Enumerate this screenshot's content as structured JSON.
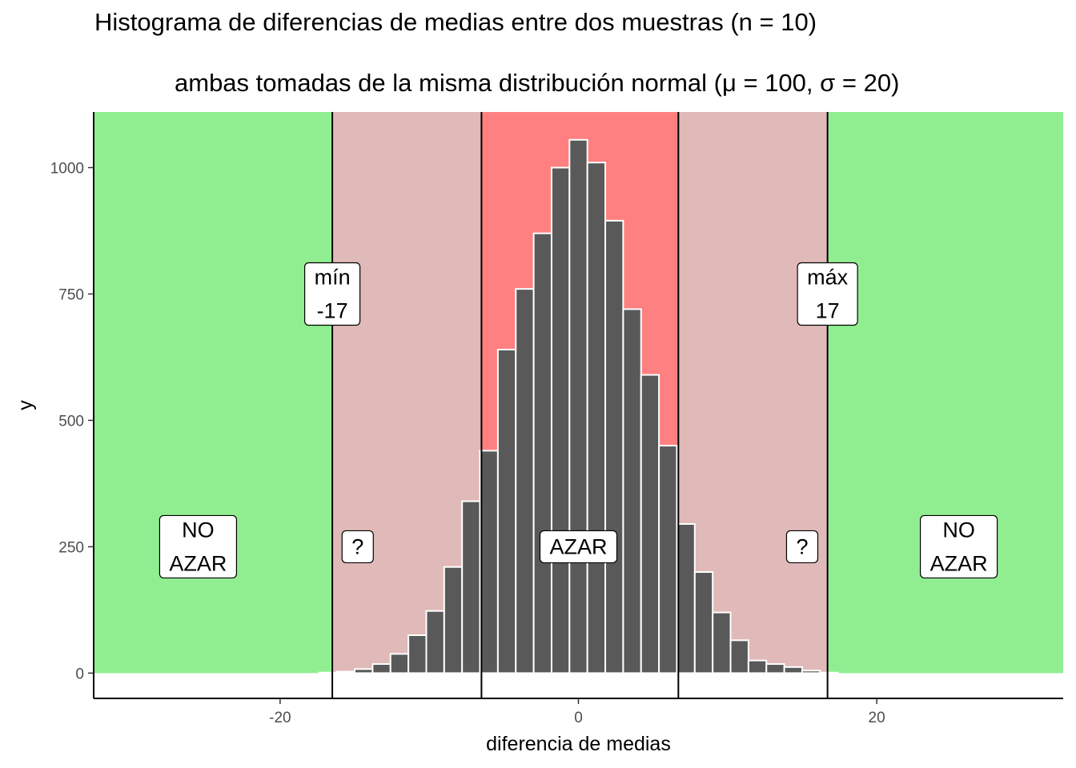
{
  "title": "Histograma de diferencias de medias entre dos muestras (n = 10)",
  "subtitle": "ambas tomadas de la misma distribución normal (μ = 100, σ = 20)",
  "chart_data": {
    "type": "bar",
    "xlabel": "diferencia de medias",
    "ylabel": "y",
    "xlim": [
      -32.5,
      32.5
    ],
    "ylim": [
      -50,
      1110
    ],
    "x_ticks": [
      -20,
      0,
      20
    ],
    "y_ticks": [
      0,
      250,
      500,
      750,
      1000
    ],
    "x_tick_labels": [
      "-20",
      "0",
      "20"
    ],
    "y_tick_labels": [
      "0",
      "250",
      "500",
      "750",
      "1000"
    ],
    "grid": false,
    "bins": {
      "width": 1.2,
      "centers": [
        -16.8,
        -15.6,
        -14.4,
        -13.2,
        -12.0,
        -10.8,
        -9.6,
        -8.4,
        -7.2,
        -6.0,
        -4.8,
        -3.6,
        -2.4,
        -1.2,
        0.0,
        1.2,
        2.4,
        3.6,
        4.8,
        6.0,
        7.2,
        8.4,
        9.6,
        10.8,
        12.0,
        13.2,
        14.4,
        15.6,
        16.8
      ],
      "counts": [
        1,
        3,
        8,
        18,
        38,
        75,
        123,
        210,
        340,
        440,
        640,
        760,
        870,
        1000,
        1055,
        1010,
        895,
        720,
        590,
        450,
        295,
        200,
        120,
        65,
        25,
        18,
        12,
        5,
        1
      ]
    },
    "regions": [
      {
        "from": -32.5,
        "to": -16.5,
        "color": "#90ee90"
      },
      {
        "from": -16.5,
        "to": -6.5,
        "color": "#e0b9b9"
      },
      {
        "from": -6.5,
        "to": 6.7,
        "color": "#ff8080"
      },
      {
        "from": 6.7,
        "to": 16.7,
        "color": "#e0b9b9"
      },
      {
        "from": 16.7,
        "to": 32.5,
        "color": "#90ee90"
      }
    ],
    "vlines": [
      -16.5,
      -6.5,
      6.7,
      16.7
    ],
    "annotations": [
      {
        "x": -16.5,
        "y": 750,
        "lines": [
          "mín",
          "-17"
        ]
      },
      {
        "x": 16.7,
        "y": 750,
        "lines": [
          "máx",
          "17"
        ]
      },
      {
        "x": -25.5,
        "y": 250,
        "lines": [
          "NO",
          "AZAR"
        ]
      },
      {
        "x": 25.5,
        "y": 250,
        "lines": [
          "NO",
          "AZAR"
        ]
      },
      {
        "x": -14.8,
        "y": 250,
        "lines": [
          "?"
        ]
      },
      {
        "x": 15.0,
        "y": 250,
        "lines": [
          "?"
        ]
      },
      {
        "x": 0.0,
        "y": 250,
        "lines": [
          "AZAR"
        ]
      }
    ],
    "colors": {
      "bar_fill": "#595959",
      "bar_stroke": "#ffffff",
      "green": "#90ee90",
      "pink": "#e0b9b9",
      "red": "#ff8080"
    }
  }
}
